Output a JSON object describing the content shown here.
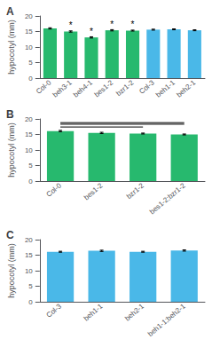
{
  "chart_data": [
    {
      "type": "bar",
      "title": "A",
      "categories": [
        "Col-0",
        "beh3-1",
        "beh4-1",
        "bes1-2",
        "bzr1-2",
        "Col-3",
        "beh1-1",
        "beh2-1"
      ],
      "values": [
        16.0,
        15.0,
        13.1,
        15.4,
        15.3,
        15.6,
        15.7,
        15.4
      ],
      "errors": [
        0.2,
        0.2,
        0.2,
        0.2,
        0.15,
        0.15,
        0.15,
        0.15
      ],
      "colors": [
        "#27b96e",
        "#27b96e",
        "#27b96e",
        "#27b96e",
        "#27b96e",
        "#4ab8e8",
        "#4ab8e8",
        "#4ab8e8"
      ],
      "ylabel": "hypocotyl (mm)",
      "ylim": [
        0,
        20
      ],
      "yticks": [
        0,
        5,
        10,
        15,
        20
      ],
      "grid": false,
      "annotations": [
        {
          "x": "beh3-1",
          "text": "*"
        },
        {
          "x": "beh4-1",
          "text": "*"
        },
        {
          "x": "bes1-2",
          "text": "*"
        },
        {
          "x": "bzr1-2",
          "text": "*"
        }
      ]
    },
    {
      "type": "bar",
      "title": "B",
      "categories": [
        "Col-0",
        "bes1-2",
        "bzr1-2",
        "bes1-2;bzr1-2"
      ],
      "values": [
        16.1,
        15.5,
        15.3,
        15.0
      ],
      "errors": [
        0.2,
        0.2,
        0.15,
        0.15
      ],
      "color": "#27b96e",
      "ylabel": "hypocotyl (mm)",
      "ylim": [
        0,
        20
      ],
      "yticks": [
        0,
        5,
        10,
        15,
        20
      ],
      "grid": false,
      "sig_lines": [
        {
          "x1": "Col-0",
          "x2": "bes1-2;bzr1-2",
          "y": 18.8
        },
        {
          "x1": "Col-0",
          "x2": "bes1-2;bzr1-2",
          "y": 18.3
        },
        {
          "x1": "Col-0",
          "x2": "bzr1-2",
          "y": 17.4
        }
      ]
    },
    {
      "type": "bar",
      "title": "C",
      "categories": [
        "Col-3",
        "beh1-1",
        "beh2-1",
        "beh1-1;beh2-1"
      ],
      "values": [
        16.1,
        16.4,
        16.1,
        16.5
      ],
      "errors": [
        0.15,
        0.2,
        0.15,
        0.2
      ],
      "color": "#4ab8e8",
      "ylabel": "hypocotyl (mm)",
      "ylim": [
        0,
        20
      ],
      "yticks": [
        0,
        5,
        10,
        15,
        20
      ],
      "grid": false
    }
  ]
}
